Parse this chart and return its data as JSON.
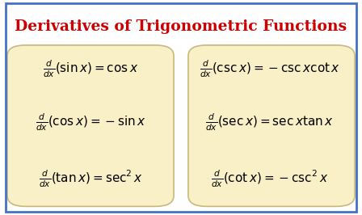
{
  "title": "Derivatives of Trigonometric Functions",
  "title_color": "#CC0000",
  "title_fontsize": 13.5,
  "bg_color": "#FFFFFF",
  "box_color": "#FAF0C8",
  "box_edge_color": "#C8B87A",
  "outer_border_color": "#4472C4",
  "formulas_left": [
    "\\frac{d}{dx}(\\sin x) = \\cos x",
    "\\frac{d}{dx}(\\cos x) = -\\sin x",
    "\\frac{d}{dx}(\\tan x) = \\sec^2 x"
  ],
  "formulas_right": [
    "\\frac{d}{dx}(\\csc x) = -\\csc x\\cot x",
    "\\frac{d}{dx}(\\sec x) = \\sec x\\tan x",
    "\\frac{d}{dx}(\\cot x) = -\\csc^2 x"
  ],
  "formula_fontsize": 11,
  "fig_width": 4.48,
  "fig_height": 2.66,
  "dpi": 100
}
